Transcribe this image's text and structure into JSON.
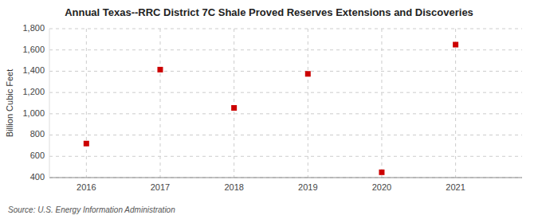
{
  "chart_data": {
    "type": "scatter",
    "title": "Annual Texas--RRC District 7C Shale Proved Reserves Extensions and Discoveries",
    "y_label": "Billion Cubic Feet",
    "source": "Source: U.S. Energy Information Administration",
    "x": [
      2016,
      2017,
      2018,
      2019,
      2020,
      2021
    ],
    "values": [
      720,
      1415,
      1055,
      1375,
      450,
      1650
    ],
    "color": "#cc0000",
    "marker": "square",
    "xlim": [
      2015.5,
      2021.9
    ],
    "xticks": [
      2016,
      2017,
      2018,
      2019,
      2020,
      2021
    ],
    "ylim": [
      400,
      1800
    ],
    "yticks": [
      400,
      600,
      800,
      {
        "value": 1000,
        "label": "1,000"
      },
      {
        "value": 1200,
        "label": "1,200"
      },
      {
        "value": 1400,
        "label": "1,400"
      },
      {
        "value": 1600,
        "label": "1,600"
      },
      {
        "value": 1800,
        "label": "1,800"
      }
    ],
    "grid": true
  }
}
